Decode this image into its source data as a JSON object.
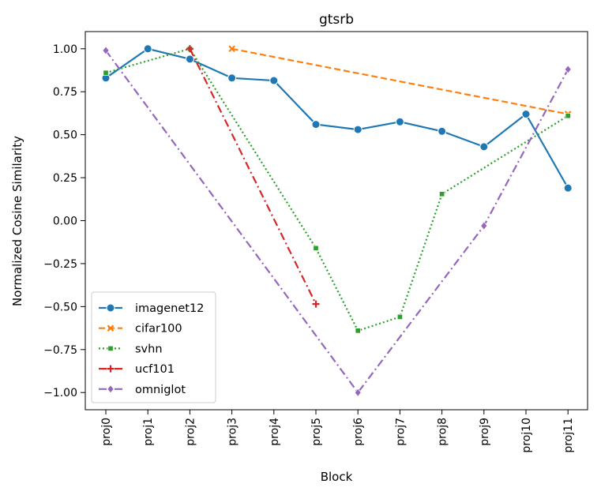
{
  "chart_data": {
    "type": "line",
    "title": "gtsrb",
    "xlabel": "Block",
    "ylabel": "Normalized Cosine Similarity",
    "categories": [
      "proj0",
      "proj1",
      "proj2",
      "proj3",
      "proj4",
      "proj5",
      "proj6",
      "proj7",
      "proj8",
      "proj9",
      "proj10",
      "proj11"
    ],
    "ylim": [
      -1.1,
      1.1
    ],
    "yticks": [
      -1.0,
      -0.75,
      -0.5,
      -0.25,
      0.0,
      0.25,
      0.5,
      0.75,
      1.0
    ],
    "ytick_labels": [
      "−1.00",
      "−0.75",
      "−0.50",
      "−0.25",
      "0.00",
      "0.25",
      "0.50",
      "0.75",
      "1.00"
    ],
    "legend_position": "lower-left",
    "grid": false,
    "series": [
      {
        "name": "imagenet12",
        "color": "#1f77b4",
        "dash": "solid",
        "marker": "circle",
        "values": [
          0.83,
          1.0,
          0.94,
          0.83,
          0.815,
          0.56,
          0.53,
          0.575,
          0.52,
          0.43,
          0.62,
          0.19
        ]
      },
      {
        "name": "cifar100",
        "color": "#ff7f0e",
        "dash": "dashed",
        "marker": "x",
        "values": [
          null,
          null,
          null,
          1.0,
          null,
          null,
          null,
          null,
          null,
          null,
          null,
          0.62
        ]
      },
      {
        "name": "svhn",
        "color": "#2ca02c",
        "dash": "dotted",
        "marker": "square",
        "values": [
          0.86,
          null,
          1.0,
          null,
          null,
          -0.16,
          -0.64,
          -0.56,
          0.155,
          null,
          null,
          0.61
        ]
      },
      {
        "name": "ucf101",
        "color": "#d62728",
        "dash": "dashdot",
        "marker": "plus",
        "values": [
          null,
          null,
          1.0,
          null,
          null,
          -0.485,
          null,
          null,
          null,
          null,
          null,
          null
        ]
      },
      {
        "name": "omniglot",
        "color": "#9467bd",
        "dash": "dashdot",
        "marker": "diamond",
        "values": [
          0.99,
          null,
          null,
          null,
          null,
          null,
          -1.0,
          null,
          null,
          -0.03,
          null,
          0.88
        ]
      }
    ]
  }
}
